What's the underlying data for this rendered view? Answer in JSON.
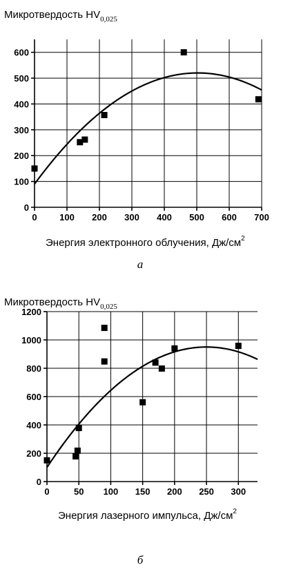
{
  "chart_data": [
    {
      "type": "scatter",
      "panel_label": "а",
      "ylabel": "Микротвердость  HV",
      "ylabel_sub": "0,025",
      "xlabel": "Энергия электронного облучения, Дж/см",
      "xlabel_sup": "2",
      "xlim": [
        0,
        700
      ],
      "ylim": [
        0,
        650
      ],
      "xticks": [
        0,
        100,
        200,
        300,
        400,
        500,
        600,
        700
      ],
      "yticks": [
        0,
        100,
        200,
        300,
        400,
        500,
        600
      ],
      "grid": true,
      "points": [
        {
          "x": 0,
          "y": 150
        },
        {
          "x": 140,
          "y": 252
        },
        {
          "x": 155,
          "y": 262
        },
        {
          "x": 215,
          "y": 357
        },
        {
          "x": 460,
          "y": 600
        },
        {
          "x": 690,
          "y": 418
        }
      ],
      "fit": {
        "type": "quadratic",
        "a": -0.0017,
        "b": 1.71,
        "c": 90
      }
    },
    {
      "type": "scatter",
      "panel_label": "б",
      "ylabel": "Микротвердость  HV",
      "ylabel_sub": "0,025",
      "xlabel": "Энергия лазерного импульса, Дж/см",
      "xlabel_sup": "2",
      "xlim": [
        0,
        330
      ],
      "ylim": [
        0,
        1200
      ],
      "xticks": [
        0,
        50,
        100,
        150,
        200,
        250,
        300
      ],
      "yticks": [
        0,
        200,
        400,
        600,
        800,
        1000,
        1200
      ],
      "grid": true,
      "points": [
        {
          "x": 0,
          "y": 150
        },
        {
          "x": 45,
          "y": 178
        },
        {
          "x": 48,
          "y": 218
        },
        {
          "x": 50,
          "y": 378
        },
        {
          "x": 90,
          "y": 1085
        },
        {
          "x": 90,
          "y": 848
        },
        {
          "x": 150,
          "y": 560
        },
        {
          "x": 170,
          "y": 840
        },
        {
          "x": 180,
          "y": 798
        },
        {
          "x": 200,
          "y": 940
        },
        {
          "x": 300,
          "y": 958
        }
      ],
      "fit": {
        "type": "quadratic",
        "a": -0.0136,
        "b": 6.8,
        "c": 100
      }
    }
  ]
}
